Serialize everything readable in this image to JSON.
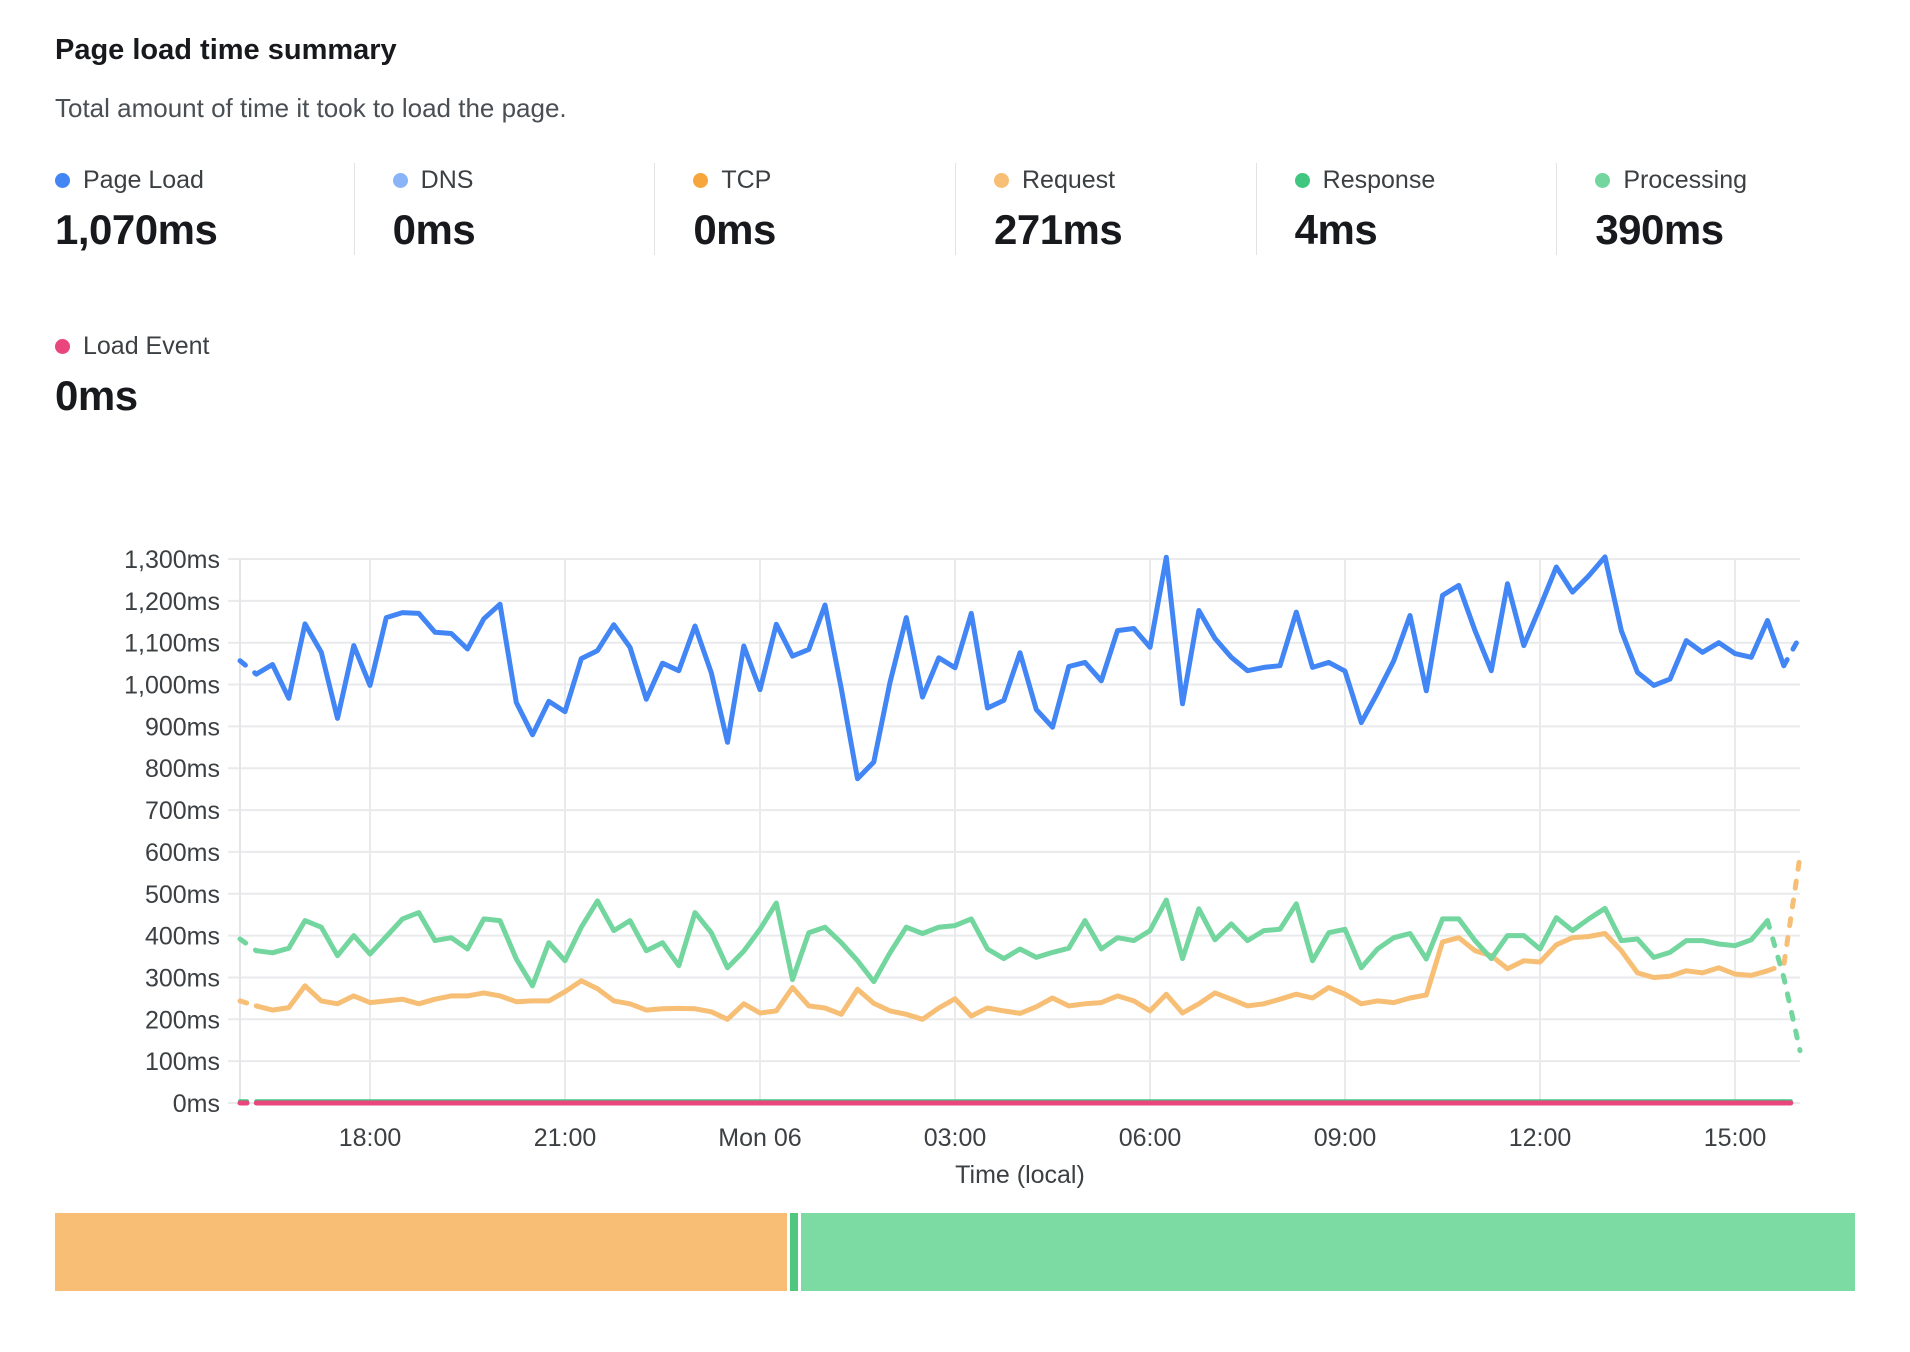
{
  "header": {
    "title": "Page load time summary",
    "subtitle": "Total amount of time it took to load the page."
  },
  "stats": [
    {
      "label": "Page Load",
      "value": "1,070ms",
      "color": "#4285f4"
    },
    {
      "label": "DNS",
      "value": "0ms",
      "color": "#8ab4f8"
    },
    {
      "label": "TCP",
      "value": "0ms",
      "color": "#f6a63c"
    },
    {
      "label": "Request",
      "value": "271ms",
      "color": "#f7be75"
    },
    {
      "label": "Response",
      "value": "4ms",
      "color": "#40c67e"
    },
    {
      "label": "Processing",
      "value": "390ms",
      "color": "#72d69e"
    }
  ],
  "stats_row2": [
    {
      "label": "Load Event",
      "value": "0ms",
      "color": "#e8467d"
    }
  ],
  "chart_data": {
    "type": "line",
    "title": "Page load time summary",
    "xlabel": "Time (local)",
    "ylim": [
      0,
      1300
    ],
    "grid": true,
    "legend_position": "top",
    "y_tick_labels": [
      "0ms",
      "100ms",
      "200ms",
      "300ms",
      "400ms",
      "500ms",
      "600ms",
      "700ms",
      "800ms",
      "900ms",
      "1,000ms",
      "1,100ms",
      "1,200ms",
      "1,300ms"
    ],
    "x_domain_hours": [
      0,
      24
    ],
    "x_ticks": [
      {
        "label": "18:00",
        "t": 2
      },
      {
        "label": "21:00",
        "t": 5
      },
      {
        "label": "Mon 06",
        "t": 8
      },
      {
        "label": "03:00",
        "t": 11
      },
      {
        "label": "06:00",
        "t": 14
      },
      {
        "label": "09:00",
        "t": 17
      },
      {
        "label": "12:00",
        "t": 20
      },
      {
        "label": "15:00",
        "t": 23
      }
    ],
    "points_per_series": 97,
    "sample_interval_minutes": 15,
    "series": [
      {
        "name": "Request",
        "color": "#f7be75",
        "width": 5,
        "dash_head": 1,
        "dash_tail": 2,
        "values": [
          244,
          232,
          222,
          228,
          280,
          244,
          237,
          256,
          240,
          244,
          248,
          237,
          248,
          256,
          256,
          263,
          256,
          242,
          244,
          244,
          266,
          292,
          273,
          244,
          237,
          222,
          225,
          226,
          225,
          218,
          200,
          237,
          215,
          220,
          276,
          232,
          227,
          212,
          272,
          238,
          220,
          212,
          200,
          227,
          249,
          208,
          227,
          220,
          214,
          230,
          251,
          232,
          237,
          240,
          256,
          244,
          220,
          260,
          215,
          237,
          263,
          248,
          232,
          237,
          248,
          260,
          251,
          276,
          260,
          237,
          244,
          240,
          251,
          258,
          385,
          395,
          364,
          352,
          321,
          340,
          337,
          378,
          395,
          398,
          405,
          364,
          311,
          300,
          303,
          316,
          311,
          323,
          308,
          305,
          316,
          330,
          590
        ]
      },
      {
        "name": "Processing",
        "color": "#72d69e",
        "width": 5,
        "dash_head": 1,
        "dash_tail": 2,
        "values": [
          392,
          364,
          359,
          370,
          436,
          420,
          352,
          400,
          356,
          398,
          440,
          455,
          388,
          395,
          368,
          440,
          436,
          344,
          280,
          383,
          340,
          420,
          483,
          412,
          436,
          364,
          383,
          328,
          455,
          407,
          323,
          363,
          415,
          478,
          295,
          407,
          420,
          383,
          340,
          290,
          359,
          420,
          405,
          420,
          424,
          440,
          368,
          345,
          368,
          348,
          360,
          370,
          436,
          368,
          395,
          388,
          412,
          485,
          345,
          464,
          390,
          428,
          388,
          412,
          415,
          476,
          340,
          407,
          415,
          323,
          368,
          395,
          405,
          344,
          440,
          440,
          388,
          345,
          400,
          400,
          368,
          443,
          412,
          440,
          465,
          388,
          392,
          348,
          360,
          388,
          388,
          380,
          376,
          390,
          436,
          300,
          125
        ]
      },
      {
        "name": "Page Load",
        "color": "#4285f4",
        "width": 5,
        "dash_head": 1,
        "dash_tail": 1,
        "values": [
          1057,
          1025,
          1048,
          967,
          1145,
          1077,
          919,
          1093,
          998,
          1160,
          1172,
          1170,
          1125,
          1122,
          1085,
          1157,
          1192,
          957,
          880,
          960,
          935,
          1062,
          1081,
          1143,
          1089,
          965,
          1051,
          1033,
          1140,
          1028,
          862,
          1092,
          988,
          1144,
          1068,
          1084,
          1190,
          990,
          775,
          815,
          1005,
          1160,
          970,
          1064,
          1040,
          1170,
          944,
          962,
          1076,
          940,
          898,
          1043,
          1053,
          1009,
          1129,
          1134,
          1089,
          1304,
          954,
          1177,
          1110,
          1065,
          1033,
          1041,
          1045,
          1173,
          1041,
          1053,
          1032,
          909,
          980,
          1057,
          1165,
          985,
          1213,
          1237,
          1129,
          1033,
          1241,
          1093,
          1185,
          1281,
          1221,
          1260,
          1305,
          1129,
          1029,
          998,
          1013,
          1105,
          1077,
          1100,
          1074,
          1065,
          1153,
          1045,
          1115
        ]
      },
      {
        "name": "Response",
        "color": "#40c67e",
        "width": 4,
        "dash_head": 1,
        "dash_tail": 1,
        "constant": 4
      },
      {
        "name": "Load Event",
        "color": "#e8467d",
        "width": 5,
        "dash_head": 1,
        "dash_tail": 1,
        "constant": 0
      }
    ]
  },
  "footer_bar": {
    "segments": [
      {
        "name": "request-share",
        "color": "#f8be75",
        "width_pct": 40.6
      },
      {
        "name": "response-share",
        "color": "#4fc77f",
        "width_pct": 0.45
      },
      {
        "name": "processing-share",
        "color": "#7cdba2",
        "width_pct": 58.5
      }
    ]
  }
}
